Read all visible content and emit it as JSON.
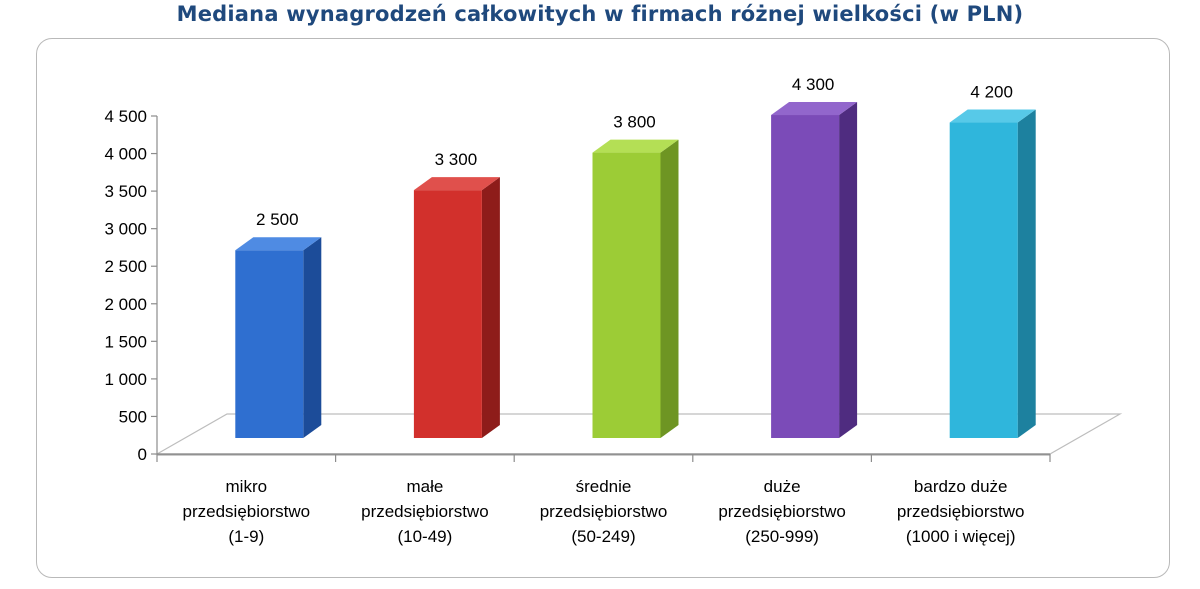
{
  "chart_data": {
    "type": "bar",
    "title": "Mediana wynagrodzeń całkowitych w firmach różnej wielkości (w PLN)",
    "xlabel": "",
    "ylabel": "",
    "ylim": [
      0,
      4500
    ],
    "yticks": [
      "0",
      "500",
      "1 000",
      "1 500",
      "2 000",
      "2 500",
      "3 000",
      "3 500",
      "4 000",
      "4 500"
    ],
    "categories": [
      [
        "mikro",
        "przedsiębiorstwo",
        "(1-9)"
      ],
      [
        "małe",
        "przedsiębiorstwo",
        "(10-49)"
      ],
      [
        "średnie",
        "przedsiębiorstwo",
        "(50-249)"
      ],
      [
        "duże",
        "przedsiębiorstwo",
        "(250-999)"
      ],
      [
        "bardzo duże",
        "przedsiębiorstwo",
        "(1000 i więcej)"
      ]
    ],
    "values": [
      2500,
      3300,
      3800,
      4300,
      4200
    ],
    "data_labels": [
      "2 500",
      "3 300",
      "3 800",
      "4 300",
      "4 200"
    ],
    "colors": [
      {
        "front": "#2f6fd0",
        "side": "#1c4c99",
        "top": "#4f8be3"
      },
      {
        "front": "#d2302c",
        "side": "#8e1c1a",
        "top": "#e0504c"
      },
      {
        "front": "#9ccc36",
        "side": "#6e9523",
        "top": "#b4df55"
      },
      {
        "front": "#7b4bb8",
        "side": "#4f2c80",
        "top": "#9266cc"
      },
      {
        "front": "#2fb6dc",
        "side": "#1d819f",
        "top": "#57c9e8"
      }
    ],
    "grid": false,
    "legend": "none"
  }
}
